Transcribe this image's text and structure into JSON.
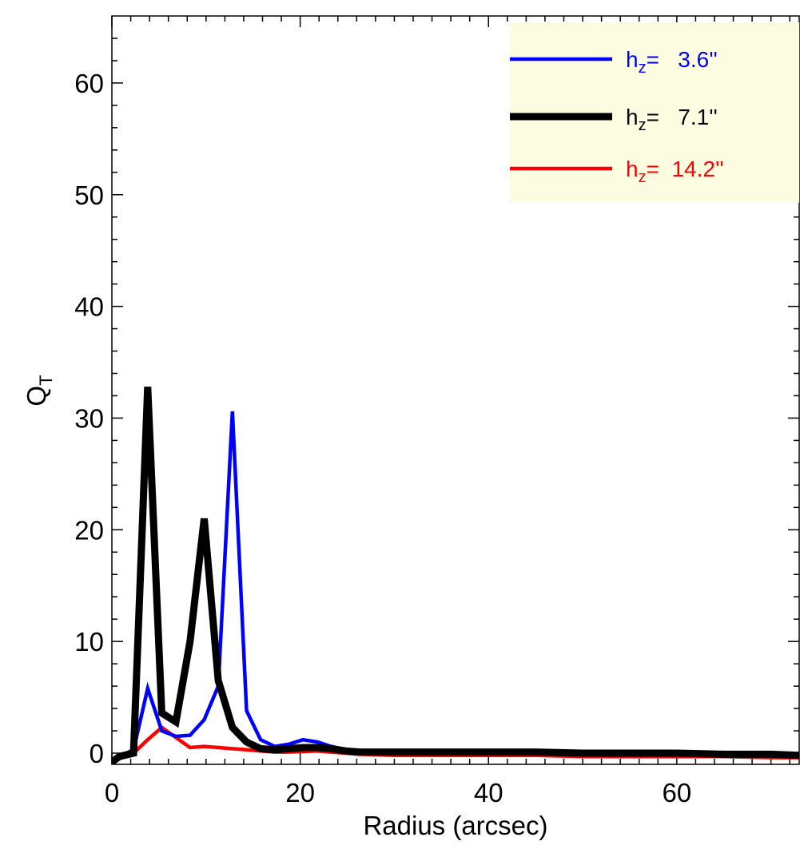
{
  "chart_data": {
    "type": "line",
    "xlabel": "Radius (arcsec)",
    "ylabel": "Q",
    "ylabel_subscript": "T",
    "xlim": [
      0,
      73
    ],
    "ylim": [
      -1,
      66
    ],
    "xticks": [
      0,
      20,
      40,
      60
    ],
    "yticks": [
      0,
      10,
      20,
      30,
      40,
      50,
      60
    ],
    "legend_position": "top-right",
    "legend_background": "#fcfce1",
    "series": [
      {
        "name_prefix": "h",
        "name_subscript": "z",
        "name_value": "=   3.6''",
        "color": "#0000ff",
        "x": [
          0,
          0.8,
          2.3,
          3.8,
          5.3,
          6.8,
          8.3,
          9.8,
          11.3,
          12.8,
          14.3,
          15.8,
          17.3,
          18.8,
          20.3,
          21.8,
          23.3,
          24.8,
          26.3,
          30,
          35,
          40,
          45,
          50,
          55,
          60,
          65,
          70,
          73
        ],
        "y": [
          -0.8,
          -0.3,
          0.3,
          5.8,
          2,
          1.5,
          1.6,
          3,
          6,
          30.6,
          3.8,
          1.2,
          0.6,
          0.8,
          1.2,
          1,
          0.6,
          0.3,
          0.2,
          0.1,
          0.1,
          0.1,
          0.1,
          0.1,
          0.1,
          0.1,
          0,
          -0.1,
          -0.2
        ]
      },
      {
        "name_prefix": "h",
        "name_subscript": "z",
        "name_value": "=   7.1''",
        "color": "#000000",
        "x": [
          0,
          0.8,
          2.3,
          3.8,
          5.3,
          6.8,
          8.3,
          9.8,
          11.3,
          12.8,
          14.3,
          15.8,
          17.3,
          18.8,
          20.3,
          21.8,
          23.3,
          24.8,
          26.3,
          30,
          35,
          40,
          45,
          50,
          55,
          60,
          65,
          70,
          73
        ],
        "y": [
          -0.8,
          -0.3,
          0,
          32.8,
          3.6,
          2.8,
          10,
          21,
          6.5,
          2.3,
          1,
          0.4,
          0.3,
          0.4,
          0.5,
          0.5,
          0.4,
          0.2,
          0.1,
          0.1,
          0.1,
          0.1,
          0.1,
          0,
          0,
          0,
          -0.1,
          -0.1,
          -0.2
        ]
      },
      {
        "name_prefix": "h",
        "name_subscript": "z",
        "name_value": "=  14.2''",
        "color": "#ff0000",
        "x": [
          0,
          0.8,
          2.3,
          3.8,
          5.3,
          6.8,
          8.3,
          9.8,
          11.3,
          12.8,
          14.3,
          15.8,
          17.3,
          18.8,
          20.3,
          21.8,
          23.3,
          24.8,
          26.3,
          30,
          35,
          40,
          45,
          50,
          55,
          60,
          65,
          70,
          73
        ],
        "y": [
          -0.8,
          -0.5,
          0,
          1.2,
          2.3,
          1.4,
          0.5,
          0.6,
          0.5,
          0.4,
          0.3,
          0.2,
          0.1,
          0.1,
          0.15,
          0.2,
          0.1,
          0,
          -0.1,
          -0.2,
          -0.2,
          -0.2,
          -0.2,
          -0.3,
          -0.3,
          -0.3,
          -0.3,
          -0.4,
          -0.4
        ]
      }
    ]
  }
}
